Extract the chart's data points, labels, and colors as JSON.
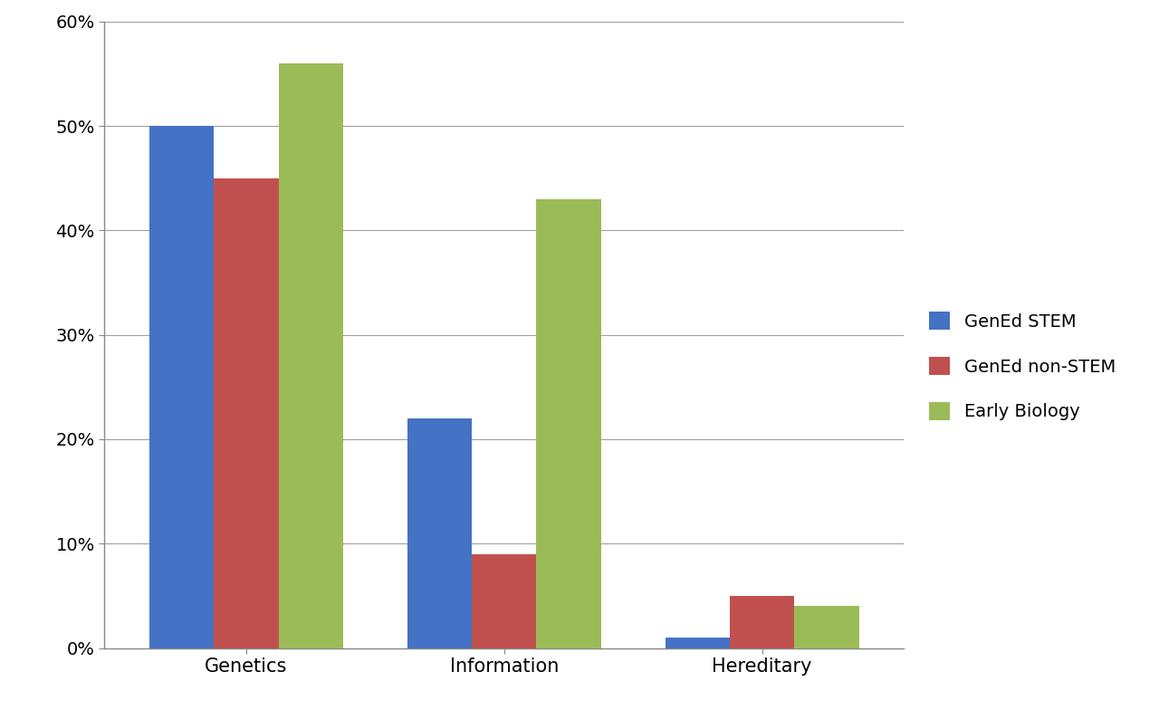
{
  "categories": [
    "Genetics",
    "Information",
    "Hereditary"
  ],
  "series": [
    {
      "label": "GenEd STEM",
      "color": "#4472C4",
      "values": [
        0.5,
        0.22,
        0.01
      ]
    },
    {
      "label": "GenEd non-STEM",
      "color": "#C0504D",
      "values": [
        0.45,
        0.09,
        0.05
      ]
    },
    {
      "label": "Early Biology",
      "color": "#9BBB59",
      "values": [
        0.56,
        0.43,
        0.04
      ]
    }
  ],
  "ylim": [
    0,
    0.6
  ],
  "yticks": [
    0.0,
    0.1,
    0.2,
    0.3,
    0.4,
    0.5,
    0.6
  ],
  "bar_width": 0.25,
  "background_color": "#FFFFFF",
  "grid_color": "#A0A0A0",
  "legend_fontsize": 14,
  "tick_fontsize": 14,
  "xlabel_fontsize": 15,
  "figsize": [
    12.8,
    7.95
  ],
  "dpi": 100
}
